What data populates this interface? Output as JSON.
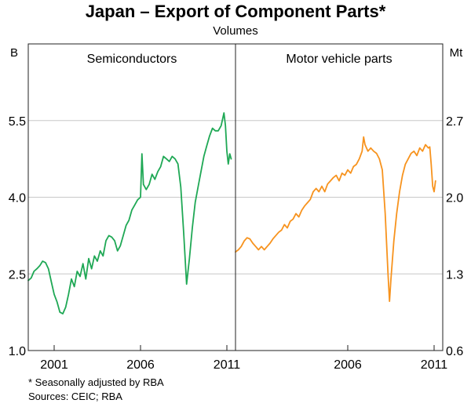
{
  "chart_data": {
    "type": "line",
    "title": "Japan – Export of Component Parts*",
    "subtitle": "Volumes",
    "footnote": "*    Seasonally adjusted by RBA",
    "sources": "Sources: CEIC; RBA",
    "grid": true,
    "panels": [
      {
        "name": "Semiconductors",
        "unit": "B",
        "xlim": [
          1999.5,
          2011.5
        ],
        "ylim": [
          1.0,
          7.0
        ],
        "y_ticks": [
          1.0,
          2.5,
          4.0,
          5.5
        ],
        "x_ticks": [
          2001,
          2006,
          2011
        ],
        "series": [
          {
            "color": "#1fa855",
            "points": [
              [
                1999.5,
                2.37
              ],
              [
                1999.67,
                2.42
              ],
              [
                1999.83,
                2.55
              ],
              [
                2000.0,
                2.6
              ],
              [
                2000.17,
                2.66
              ],
              [
                2000.33,
                2.75
              ],
              [
                2000.5,
                2.72
              ],
              [
                2000.67,
                2.6
              ],
              [
                2000.83,
                2.35
              ],
              [
                2001.0,
                2.1
              ],
              [
                2001.17,
                1.95
              ],
              [
                2001.33,
                1.75
              ],
              [
                2001.5,
                1.72
              ],
              [
                2001.67,
                1.85
              ],
              [
                2001.83,
                2.1
              ],
              [
                2002.0,
                2.4
              ],
              [
                2002.17,
                2.25
              ],
              [
                2002.33,
                2.55
              ],
              [
                2002.5,
                2.45
              ],
              [
                2002.67,
                2.7
              ],
              [
                2002.83,
                2.4
              ],
              [
                2003.0,
                2.8
              ],
              [
                2003.17,
                2.6
              ],
              [
                2003.33,
                2.85
              ],
              [
                2003.5,
                2.75
              ],
              [
                2003.67,
                2.95
              ],
              [
                2003.83,
                2.85
              ],
              [
                2004.0,
                3.15
              ],
              [
                2004.17,
                3.25
              ],
              [
                2004.33,
                3.22
              ],
              [
                2004.5,
                3.15
              ],
              [
                2004.67,
                2.95
              ],
              [
                2004.83,
                3.05
              ],
              [
                2005.0,
                3.25
              ],
              [
                2005.17,
                3.45
              ],
              [
                2005.33,
                3.55
              ],
              [
                2005.5,
                3.75
              ],
              [
                2005.67,
                3.85
              ],
              [
                2005.83,
                3.95
              ],
              [
                2006.0,
                4.0
              ],
              [
                2006.08,
                4.85
              ],
              [
                2006.17,
                4.25
              ],
              [
                2006.33,
                4.15
              ],
              [
                2006.5,
                4.25
              ],
              [
                2006.67,
                4.45
              ],
              [
                2006.83,
                4.35
              ],
              [
                2007.0,
                4.5
              ],
              [
                2007.17,
                4.6
              ],
              [
                2007.33,
                4.8
              ],
              [
                2007.5,
                4.75
              ],
              [
                2007.67,
                4.7
              ],
              [
                2007.83,
                4.8
              ],
              [
                2008.0,
                4.75
              ],
              [
                2008.17,
                4.65
              ],
              [
                2008.33,
                4.2
              ],
              [
                2008.5,
                3.3
              ],
              [
                2008.67,
                2.3
              ],
              [
                2008.83,
                2.8
              ],
              [
                2009.0,
                3.4
              ],
              [
                2009.17,
                3.9
              ],
              [
                2009.33,
                4.2
              ],
              [
                2009.5,
                4.5
              ],
              [
                2009.67,
                4.8
              ],
              [
                2009.83,
                5.0
              ],
              [
                2010.0,
                5.2
              ],
              [
                2010.17,
                5.35
              ],
              [
                2010.33,
                5.3
              ],
              [
                2010.5,
                5.3
              ],
              [
                2010.67,
                5.4
              ],
              [
                2010.83,
                5.65
              ],
              [
                2010.92,
                5.4
              ],
              [
                2011.0,
                4.9
              ],
              [
                2011.08,
                4.65
              ],
              [
                2011.17,
                4.85
              ],
              [
                2011.25,
                4.75
              ]
            ]
          }
        ]
      },
      {
        "name": "Motor vehicle parts",
        "unit": "Mt",
        "xlim": [
          1999.5,
          2011.5
        ],
        "ylim": [
          0.6,
          3.4
        ],
        "y_ticks": [
          0.6,
          1.3,
          2.0,
          2.7
        ],
        "x_ticks": [
          2006,
          2011
        ],
        "series": [
          {
            "color": "#f7931e",
            "points": [
              [
                1999.5,
                1.5
              ],
              [
                1999.67,
                1.52
              ],
              [
                1999.83,
                1.55
              ],
              [
                2000.0,
                1.6
              ],
              [
                2000.17,
                1.63
              ],
              [
                2000.33,
                1.62
              ],
              [
                2000.5,
                1.58
              ],
              [
                2000.67,
                1.55
              ],
              [
                2000.83,
                1.52
              ],
              [
                2001.0,
                1.55
              ],
              [
                2001.17,
                1.52
              ],
              [
                2001.33,
                1.55
              ],
              [
                2001.5,
                1.58
              ],
              [
                2001.67,
                1.62
              ],
              [
                2001.83,
                1.65
              ],
              [
                2002.0,
                1.68
              ],
              [
                2002.17,
                1.7
              ],
              [
                2002.33,
                1.75
              ],
              [
                2002.5,
                1.72
              ],
              [
                2002.67,
                1.78
              ],
              [
                2002.83,
                1.8
              ],
              [
                2003.0,
                1.85
              ],
              [
                2003.17,
                1.82
              ],
              [
                2003.33,
                1.88
              ],
              [
                2003.5,
                1.92
              ],
              [
                2003.67,
                1.95
              ],
              [
                2003.83,
                1.98
              ],
              [
                2004.0,
                2.05
              ],
              [
                2004.17,
                2.08
              ],
              [
                2004.33,
                2.05
              ],
              [
                2004.5,
                2.1
              ],
              [
                2004.67,
                2.05
              ],
              [
                2004.83,
                2.12
              ],
              [
                2005.0,
                2.15
              ],
              [
                2005.17,
                2.18
              ],
              [
                2005.33,
                2.2
              ],
              [
                2005.5,
                2.15
              ],
              [
                2005.67,
                2.22
              ],
              [
                2005.83,
                2.2
              ],
              [
                2006.0,
                2.25
              ],
              [
                2006.17,
                2.22
              ],
              [
                2006.33,
                2.28
              ],
              [
                2006.5,
                2.3
              ],
              [
                2006.67,
                2.35
              ],
              [
                2006.83,
                2.42
              ],
              [
                2006.92,
                2.55
              ],
              [
                2007.0,
                2.48
              ],
              [
                2007.17,
                2.42
              ],
              [
                2007.33,
                2.45
              ],
              [
                2007.5,
                2.42
              ],
              [
                2007.67,
                2.4
              ],
              [
                2007.83,
                2.35
              ],
              [
                2008.0,
                2.25
              ],
              [
                2008.17,
                1.85
              ],
              [
                2008.33,
                1.3
              ],
              [
                2008.42,
                1.05
              ],
              [
                2008.5,
                1.25
              ],
              [
                2008.67,
                1.6
              ],
              [
                2008.83,
                1.85
              ],
              [
                2009.0,
                2.05
              ],
              [
                2009.17,
                2.2
              ],
              [
                2009.33,
                2.3
              ],
              [
                2009.5,
                2.35
              ],
              [
                2009.67,
                2.4
              ],
              [
                2009.83,
                2.42
              ],
              [
                2010.0,
                2.38
              ],
              [
                2010.17,
                2.45
              ],
              [
                2010.33,
                2.42
              ],
              [
                2010.5,
                2.48
              ],
              [
                2010.67,
                2.45
              ],
              [
                2010.75,
                2.46
              ],
              [
                2010.83,
                2.3
              ],
              [
                2010.92,
                2.1
              ],
              [
                2011.0,
                2.05
              ],
              [
                2011.08,
                2.15
              ]
            ]
          }
        ]
      }
    ]
  }
}
